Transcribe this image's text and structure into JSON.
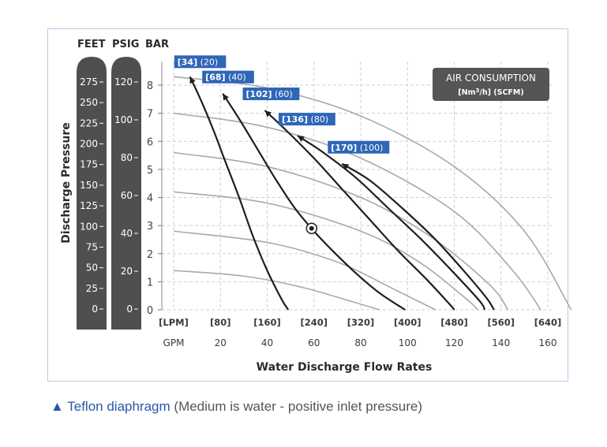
{
  "chart_data": {
    "type": "line",
    "units_header": [
      "FEET",
      "PSIG",
      "BAR"
    ],
    "ylabel": "Discharge Pressure",
    "xlabel": "Water Discharge Flow Rates",
    "xlim": [
      0,
      170
    ],
    "ylim": [
      0,
      8.5
    ],
    "x_ticks_gpm": [
      0,
      20,
      40,
      60,
      80,
      100,
      120,
      140,
      160
    ],
    "x_ticks_gpm_labels": [
      "GPM",
      "20",
      "40",
      "60",
      "80",
      "100",
      "120",
      "140",
      "160"
    ],
    "x_ticks_lpm_labels": [
      "[LPM]",
      "[80]",
      "[160]",
      "[240]",
      "[320]",
      "[400]",
      "[480]",
      "[560]",
      "[640]"
    ],
    "y_ticks_bar": [
      "0",
      "1",
      "2",
      "3",
      "4",
      "5",
      "6",
      "7",
      "8"
    ],
    "feet_ticks": [
      "275",
      "250",
      "225",
      "200",
      "175",
      "150",
      "125",
      "100",
      "75",
      "50",
      "25",
      "0"
    ],
    "psig_ticks": [
      "120",
      "100",
      "80",
      "60",
      "40",
      "20",
      "0"
    ],
    "grid": true,
    "legend": {
      "title": "AIR CONSUMPTION",
      "subtitle_prefix": "[Nm",
      "subtitle_sup": "3",
      "subtitle_suffix": "/h] (SCFM)",
      "placement": "top-right"
    },
    "air_curves": [
      {
        "name": "[34] (20)",
        "nm3h": "[34]",
        "scfm": "(20)",
        "points": [
          [
            7,
            8.3
          ],
          [
            12,
            7.4
          ],
          [
            17,
            6.4
          ],
          [
            22,
            5.3
          ],
          [
            28,
            4.0
          ],
          [
            34,
            2.6
          ],
          [
            40,
            1.4
          ],
          [
            46,
            0.4
          ],
          [
            49,
            0
          ]
        ]
      },
      {
        "name": "[68] (40)",
        "nm3h": "[68]",
        "scfm": "(40)",
        "points": [
          [
            21,
            7.7
          ],
          [
            28,
            6.8
          ],
          [
            36,
            5.7
          ],
          [
            44,
            4.6
          ],
          [
            52,
            3.6
          ],
          [
            60,
            2.8
          ],
          [
            68,
            2.1
          ],
          [
            78,
            1.3
          ],
          [
            88,
            0.6
          ],
          [
            99,
            0
          ]
        ]
      },
      {
        "name": "[102] (60)",
        "nm3h": "[102]",
        "scfm": "(60)",
        "points": [
          [
            39,
            7.1
          ],
          [
            48,
            6.4
          ],
          [
            60,
            5.4
          ],
          [
            72,
            4.3
          ],
          [
            84,
            3.2
          ],
          [
            96,
            2.1
          ],
          [
            108,
            1.1
          ],
          [
            118,
            0.2
          ],
          [
            120,
            0
          ]
        ]
      },
      {
        "name": "[136] (80)",
        "nm3h": "[136]",
        "scfm": "(80)",
        "points": [
          [
            53,
            6.2
          ],
          [
            64,
            5.6
          ],
          [
            78,
            4.7
          ],
          [
            92,
            3.6
          ],
          [
            106,
            2.5
          ],
          [
            120,
            1.3
          ],
          [
            131,
            0.3
          ],
          [
            133,
            0
          ]
        ]
      },
      {
        "name": "[170] (100)",
        "nm3h": "[170]",
        "scfm": "(100)",
        "points": [
          [
            72,
            5.2
          ],
          [
            84,
            4.6
          ],
          [
            98,
            3.6
          ],
          [
            112,
            2.5
          ],
          [
            125,
            1.3
          ],
          [
            134,
            0.4
          ],
          [
            137,
            0
          ]
        ]
      }
    ],
    "pressure_curves": [
      {
        "name": "P8",
        "points": [
          [
            0,
            8.3
          ],
          [
            40,
            7.9
          ],
          [
            80,
            6.9
          ],
          [
            120,
            5.1
          ],
          [
            150,
            2.8
          ],
          [
            170,
            0
          ]
        ]
      },
      {
        "name": "P7",
        "points": [
          [
            0,
            7.0
          ],
          [
            40,
            6.5
          ],
          [
            80,
            5.4
          ],
          [
            120,
            3.5
          ],
          [
            145,
            1.4
          ],
          [
            157,
            0
          ]
        ]
      },
      {
        "name": "P55",
        "points": [
          [
            0,
            5.6
          ],
          [
            40,
            5.1
          ],
          [
            80,
            4.0
          ],
          [
            110,
            2.6
          ],
          [
            135,
            0.9
          ],
          [
            143,
            0
          ]
        ]
      },
      {
        "name": "P42",
        "points": [
          [
            0,
            4.2
          ],
          [
            40,
            3.8
          ],
          [
            80,
            2.8
          ],
          [
            105,
            1.7
          ],
          [
            125,
            0.4
          ],
          [
            130,
            0
          ]
        ]
      },
      {
        "name": "P28",
        "points": [
          [
            0,
            2.8
          ],
          [
            40,
            2.4
          ],
          [
            70,
            1.7
          ],
          [
            95,
            0.7
          ],
          [
            112,
            0
          ]
        ]
      },
      {
        "name": "P14",
        "points": [
          [
            0,
            1.4
          ],
          [
            30,
            1.2
          ],
          [
            55,
            0.8
          ],
          [
            80,
            0.2
          ],
          [
            88,
            0
          ]
        ]
      }
    ],
    "marker_point": [
      59,
      2.9
    ]
  },
  "caption": {
    "triangle": "▲",
    "material": "Teflon diaphragm",
    "note": "(Medium is water -  positive inlet pressure)"
  },
  "colors": {
    "bar": "#4f4f4f",
    "flag": "#2e66b8",
    "legend_box": "#555555",
    "air_curve": "#1f1f1f",
    "pressure_curve": "#a8a8a8",
    "grid": "#cfcfcf",
    "frame": "#b9cbe6",
    "caption_accent": "#2a56a8"
  }
}
